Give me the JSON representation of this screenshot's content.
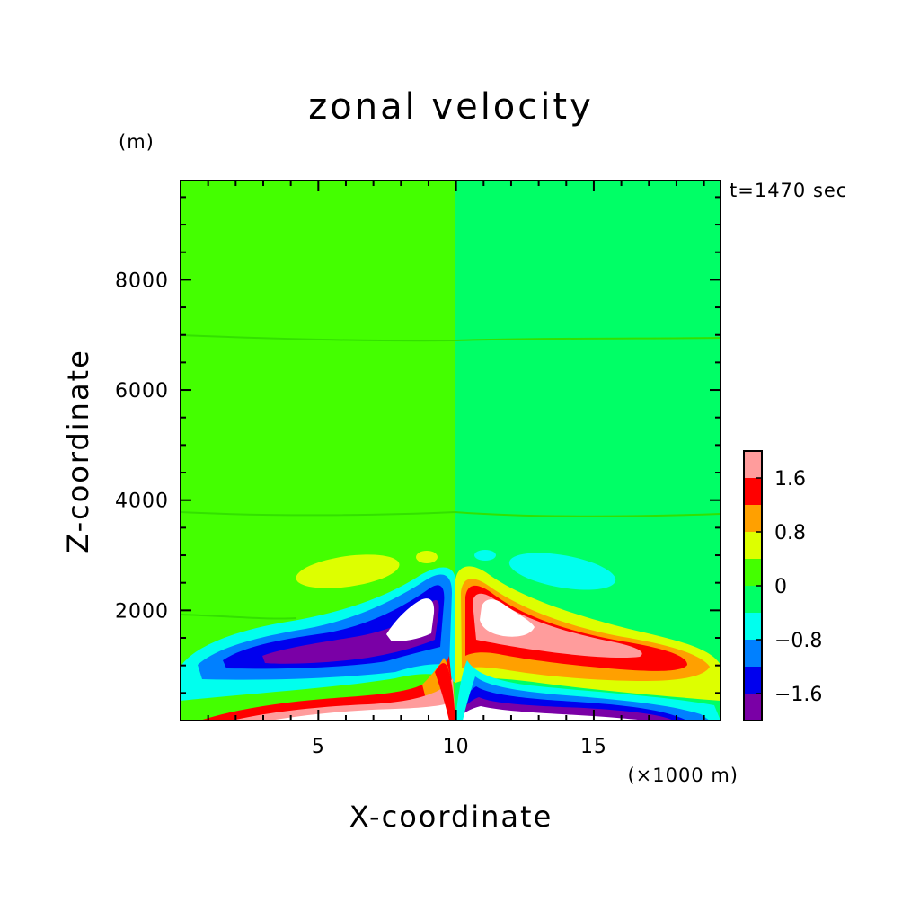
{
  "chart_data": {
    "type": "heatmap",
    "title": "zonal velocity",
    "ylabel": "Z-coordinate",
    "yunit": "(m)",
    "xlabel": "X-coordinate",
    "xunit": "(×1000 m)",
    "time_label": "t=1470 sec",
    "xlim": [
      0,
      19.6
    ],
    "ylim": [
      0,
      9800
    ],
    "xticks": [
      5,
      10,
      15
    ],
    "xtick_labels": [
      "5",
      "10",
      "15"
    ],
    "yticks": [
      2000,
      4000,
      6000,
      8000
    ],
    "ytick_labels": [
      "2000",
      "4000",
      "6000",
      "8000"
    ],
    "colorbar": {
      "labels": [
        "1.6",
        "0.8",
        "0",
        "−0.8",
        "−1.6"
      ],
      "label_values": [
        1.6,
        0.8,
        0,
        -0.8,
        -1.6
      ],
      "levels": [
        -2.4,
        -2.0,
        -1.6,
        -1.2,
        -0.8,
        -0.4,
        0,
        0.4,
        0.8,
        1.2,
        1.6,
        2.0,
        2.4
      ],
      "colors": [
        "#7a00a6",
        "#0000ee",
        "#0080ff",
        "#00ffee",
        "#00ff66",
        "#44ff00",
        "#ddff00",
        "#ffa000",
        "#ff0000",
        "#ff9c9c"
      ],
      "over_color": "#ffffff"
    },
    "regions": [
      {
        "name": "background-left",
        "value": 0.2,
        "color": "#44ff00"
      },
      {
        "name": "background-right",
        "value": -0.2,
        "color": "#00ff66"
      },
      {
        "name": "upper-yellow-left",
        "value": 0.6,
        "color": "#ddff00"
      },
      {
        "name": "upper-cyan-right",
        "value": -0.6,
        "color": "#00ffee"
      },
      {
        "name": "left-jet",
        "value": -2.4,
        "color": "#7a00a6"
      },
      {
        "name": "right-jet",
        "value": 2.4,
        "color": "#ff9c9c"
      },
      {
        "name": "surface-left",
        "value": 2.4,
        "color": "#ff9c9c"
      },
      {
        "name": "surface-right",
        "value": -2.4,
        "color": "#7a00a6"
      }
    ]
  }
}
